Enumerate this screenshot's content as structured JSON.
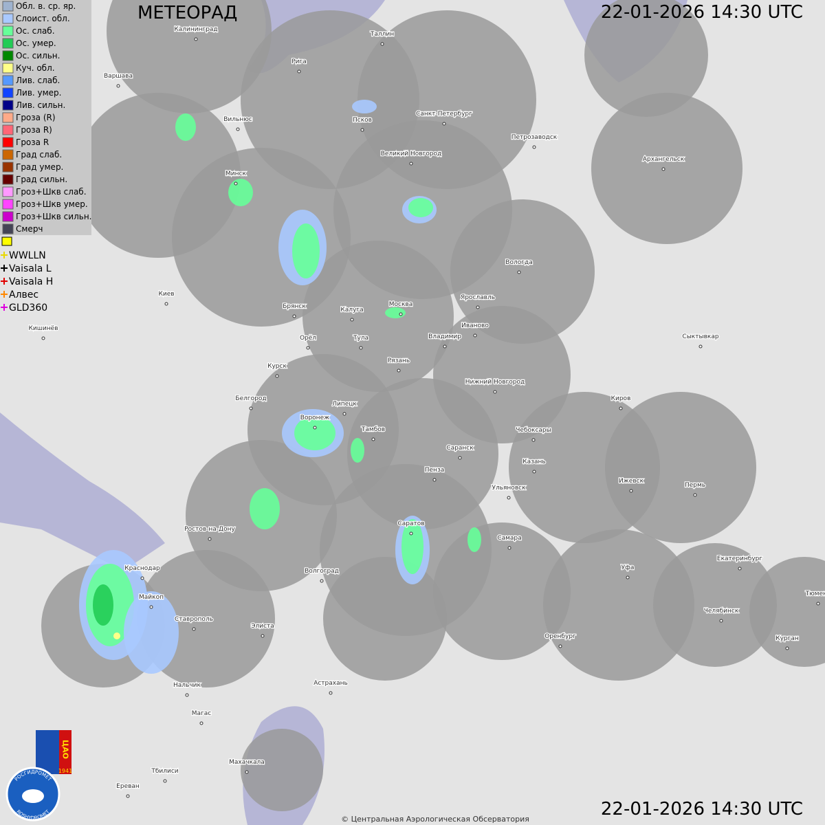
{
  "header": {
    "title": "МЕТЕОРАД",
    "timestamp": "22-01-2026  14:30 UTC"
  },
  "legend": {
    "items": [
      "Обл. в. ср. яр.",
      "Слоист. обл.",
      "Ос. слаб.",
      "Ос. умер.",
      "Ос. сильн.",
      "Куч. обл.",
      "Лив. слаб.",
      "Лив. умер.",
      "Лив. сильн.",
      "Гроза (R)",
      "Гроза R)",
      "Гроза R",
      "Град слаб.",
      "Град умер.",
      "Град сильн.",
      "Гроз+Шкв слаб.",
      "Гроз+Шкв умер.",
      "Гроз+Шкв сильн.",
      "Смерч"
    ],
    "colors": [
      "#9fb3cf",
      "#a9c9ff",
      "#66ff99",
      "#22cc55",
      "#008800",
      "#ffff88",
      "#5599ff",
      "#1144ff",
      "#000088",
      "#ffaa88",
      "#ff6677",
      "#ff0000",
      "#cc6600",
      "#993300",
      "#660000",
      "#ff99ff",
      "#ff44ff",
      "#cc00cc",
      "#444455"
    ]
  },
  "lightning": {
    "items": [
      "WWLLN",
      "Vaisala L",
      "Vaisala H",
      "Алвес",
      "GLD360"
    ],
    "colors": [
      "#e8d800",
      "#000000",
      "#e00000",
      "#ff8800",
      "#dd00dd"
    ]
  },
  "cities": [
    "Калининград",
    "Таллин",
    "Рига",
    "Варшава",
    "Санкт-Петербург",
    "Псков",
    "Вильнюс",
    "Петрозаводск",
    "Великий Новгород",
    "Архангельск",
    "Минск",
    "Вологда",
    "Киев",
    "Брянск",
    "Калуга",
    "Москва",
    "Ярославль",
    "Иваново",
    "Кишинёв",
    "Орёл",
    "Тула",
    "Владимир",
    "Сыктывкар",
    "Рязань",
    "Курск",
    "Нижний Новгород",
    "Белгород",
    "Липецк",
    "Киров",
    "Воронеж",
    "Тамбов",
    "Чебоксары",
    "Саранск",
    "Пенза",
    "Казань",
    "Ижевск",
    "Пермь",
    "Ульяновск",
    "Саратов",
    "Ростов-на-Дону",
    "Самара",
    "Краснодар",
    "Екатеринбург",
    "Волгоград",
    "Уфа",
    "Майкоп",
    "Тюмень",
    "Челябинск",
    "Ставрополь",
    "Элиста",
    "Оренбург",
    "Курган",
    "Нальчик",
    "Астрахань",
    "Магас",
    "Махачкала",
    "Тбилиси",
    "Ереван"
  ],
  "logo": {
    "org": "ЦАО",
    "year": "1941",
    "top": "РОСГИДРОМЕТ",
    "bottom": "ROSHYDROMET"
  },
  "footer": {
    "copyright": "© Центральная Аэрологическая Обсерватория"
  }
}
